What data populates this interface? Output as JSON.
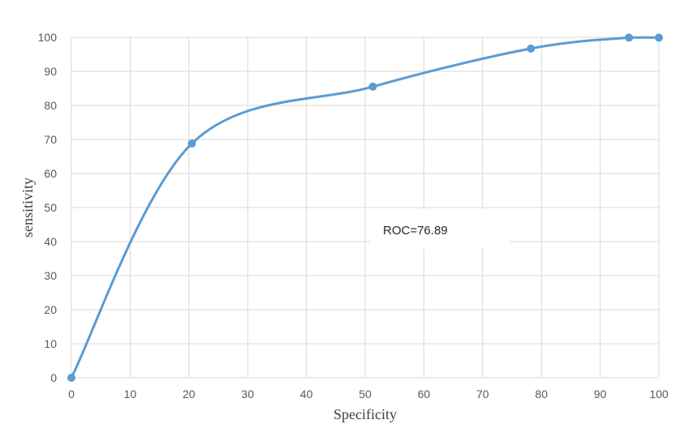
{
  "chart_data": {
    "type": "line",
    "xlabel": "Specificity",
    "ylabel": "sensitivity",
    "xlim": [
      0,
      100
    ],
    "ylim": [
      0,
      100
    ],
    "x_ticks": [
      0,
      10,
      20,
      30,
      40,
      50,
      60,
      70,
      80,
      90,
      100
    ],
    "y_ticks": [
      0,
      10,
      20,
      30,
      40,
      50,
      60,
      70,
      80,
      90,
      100
    ],
    "grid": true,
    "smooth": true,
    "series": [
      {
        "color": "#5b9bd5",
        "points": [
          {
            "x": 0,
            "y": 0
          },
          {
            "x": 20.5,
            "y": 68.8
          },
          {
            "x": 51.3,
            "y": 85.5
          },
          {
            "x": 78.2,
            "y": 96.7
          },
          {
            "x": 94.9,
            "y": 99.9
          },
          {
            "x": 100,
            "y": 99.9
          }
        ]
      }
    ],
    "annotation": {
      "text": "ROC=76.89",
      "placement": "center-right"
    }
  }
}
